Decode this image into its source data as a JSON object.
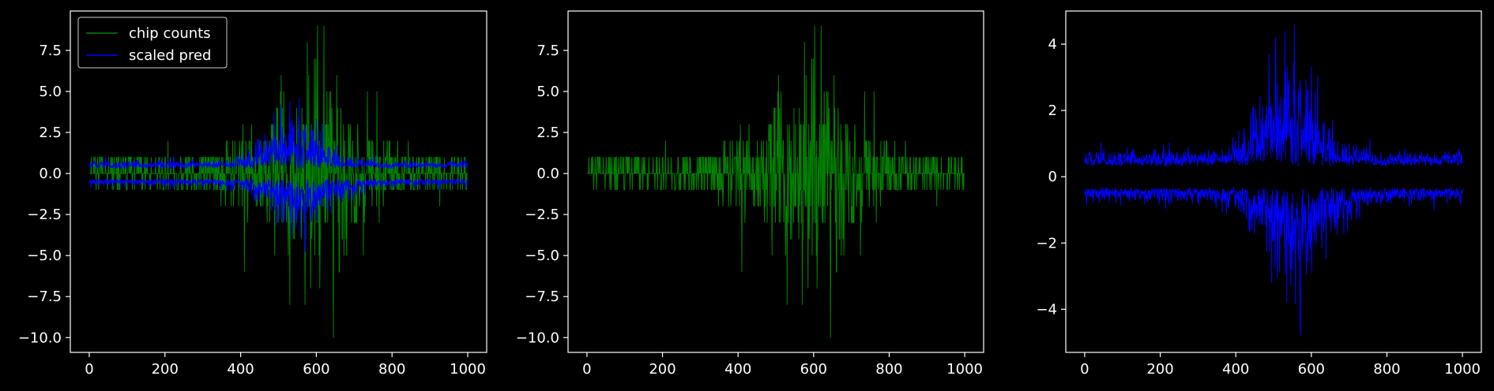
{
  "colors": {
    "background": "#000000",
    "axes": "#ffffff",
    "chip_counts": "#008000",
    "scaled_pred": "#0000ff"
  },
  "chart_data": [
    {
      "type": "line",
      "title": "",
      "xlabel": "",
      "ylabel": "",
      "xlim": [
        -50,
        1050
      ],
      "ylim": [
        -10.9,
        9.9
      ],
      "xticks": [
        0,
        200,
        400,
        600,
        800,
        1000
      ],
      "yticks": [
        -10.0,
        -7.5,
        -5.0,
        -2.5,
        0.0,
        2.5,
        5.0,
        7.5
      ],
      "ytick_labels": [
        "−10.0",
        "−7.5",
        "−5.0",
        "−2.5",
        "0.0",
        "2.5",
        "5.0",
        "7.5"
      ],
      "legend": {
        "position": "top-left",
        "entries": [
          "chip counts",
          "scaled pred"
        ]
      },
      "grid": false,
      "series": [
        {
          "name": "chip counts",
          "color": "#008000",
          "style": "integer noise, amplitude envelope peaking near x≈600",
          "x_range": [
            0,
            1000
          ],
          "min": -10,
          "max": 9,
          "key_points": [
            [
              620,
              9
            ],
            [
              645,
              -10
            ],
            [
              530,
              -8
            ],
            [
              570,
              -8
            ],
            [
              580,
              6
            ]
          ]
        },
        {
          "name": "scaled pred",
          "color": "#0000ff",
          "style": "two mirrored noisy bands around 0, widening near x≈550",
          "x_range": [
            0,
            1000
          ],
          "upper_band_baseline": 0.3,
          "lower_band_baseline": -0.3,
          "min": -4.8,
          "max": 4.6
        }
      ]
    },
    {
      "type": "line",
      "title": "",
      "xlabel": "",
      "ylabel": "",
      "xlim": [
        -50,
        1050
      ],
      "ylim": [
        -10.9,
        9.9
      ],
      "xticks": [
        0,
        200,
        400,
        600,
        800,
        1000
      ],
      "yticks": [
        -10.0,
        -7.5,
        -5.0,
        -2.5,
        0.0,
        2.5,
        5.0,
        7.5
      ],
      "ytick_labels": [
        "−10.0",
        "−7.5",
        "−5.0",
        "−2.5",
        "0.0",
        "2.5",
        "5.0",
        "7.5"
      ],
      "grid": false,
      "series": [
        {
          "color": "#008000",
          "style": "integer noise, amplitude envelope peaking near x≈600",
          "x_range": [
            0,
            1000
          ],
          "min": -10,
          "max": 9
        }
      ]
    },
    {
      "type": "line",
      "title": "",
      "xlabel": "",
      "ylabel": "",
      "xlim": [
        -50,
        1050
      ],
      "ylim": [
        -5.3,
        5.0
      ],
      "xticks": [
        0,
        200,
        400,
        600,
        800,
        1000
      ],
      "yticks": [
        -4,
        -2,
        0,
        2,
        4
      ],
      "ytick_labels": [
        "−4",
        "−2",
        "0",
        "2",
        "4"
      ],
      "grid": false,
      "series": [
        {
          "color": "#0000ff",
          "style": "two mirrored noisy bands around 0, widening near x≈550",
          "x_range": [
            0,
            1000
          ],
          "upper_band_baseline": 0.3,
          "lower_band_baseline": -0.3,
          "min": -4.8,
          "max": 4.6
        }
      ]
    }
  ]
}
